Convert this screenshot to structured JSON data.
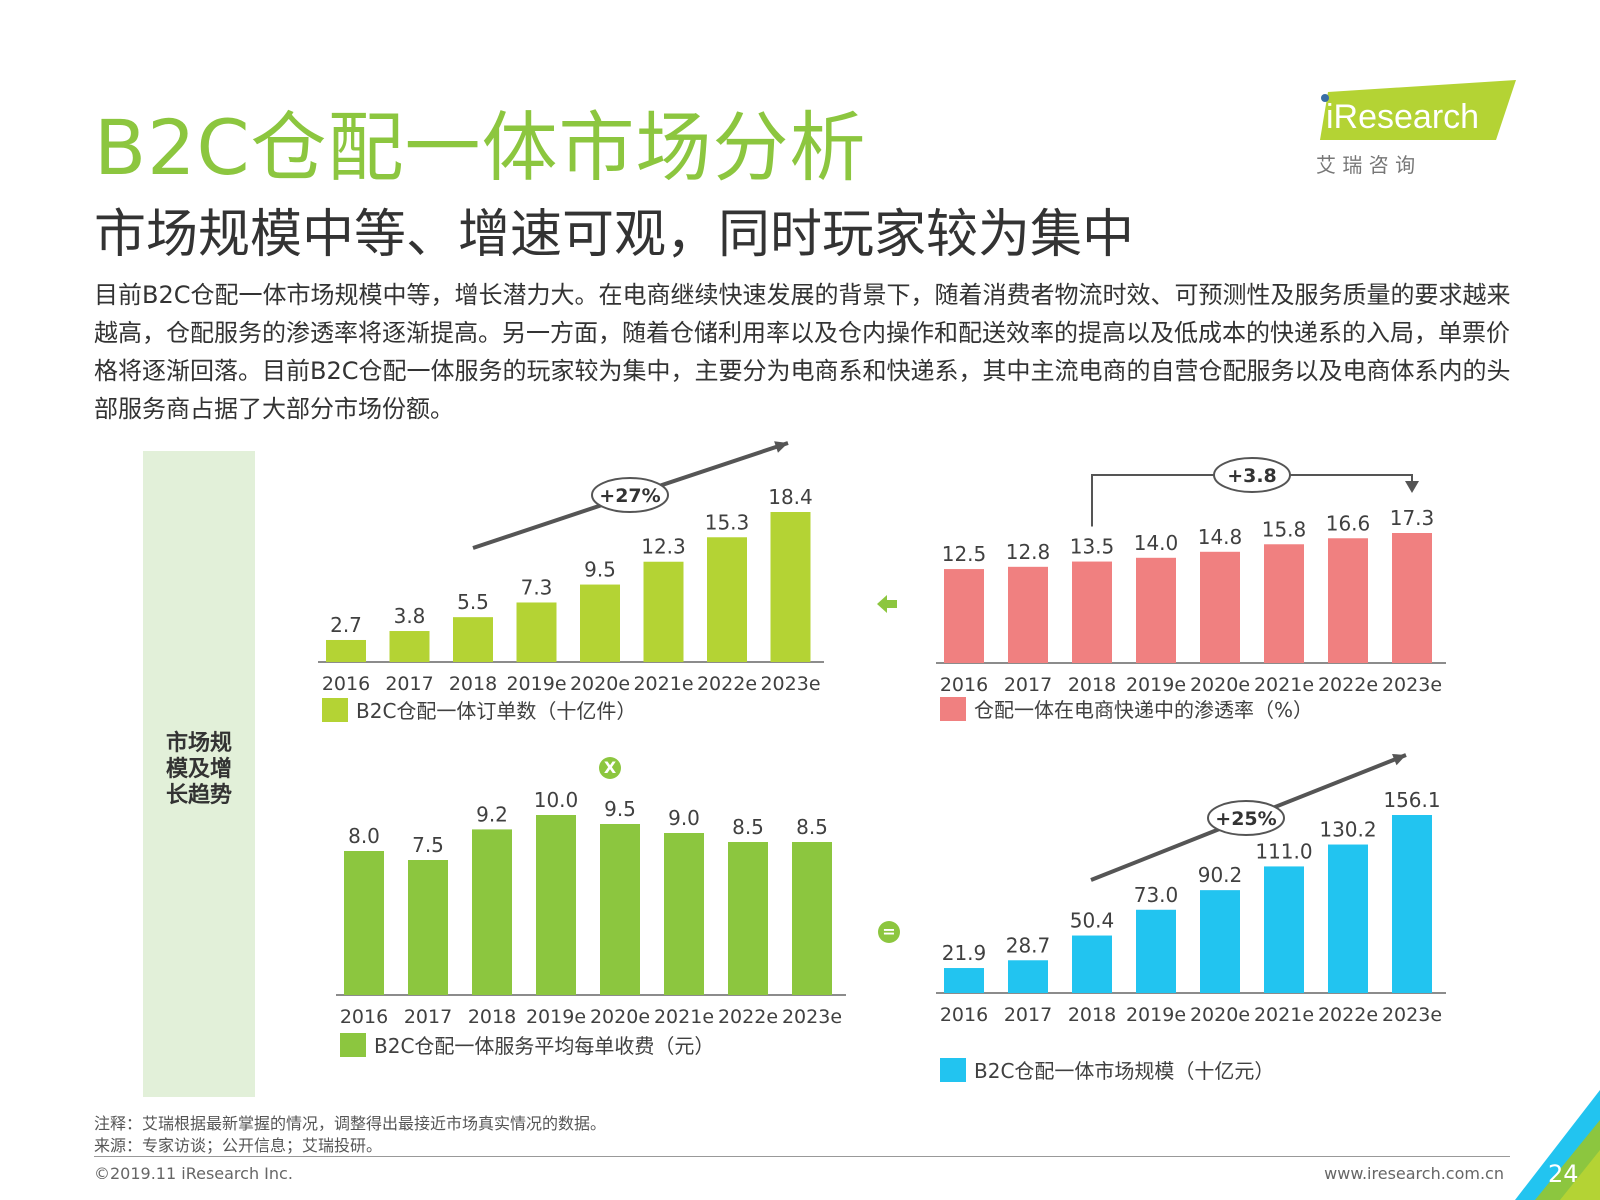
{
  "title": "B2C仓配一体市场分析",
  "subtitle": "市场规模中等、增速可观，同时玩家较为集中",
  "body_text": "目前B2C仓配一体市场规模中等，增长潜力大。在电商继续快速发展的背景下，随着消费者物流时效、可预测性及服务质量的要求越来越高，仓配服务的渗透率将逐渐提高。另一方面，随着仓储利用率以及仓内操作和配送效率的提高以及低成本的快递系的入局，单票价格将逐渐回落。目前B2C仓配一体服务的玩家较为集中，主要分为电商系和快递系，其中主流电商的自营仓配服务以及电商体系内的头部服务商占据了大部分市场份额。",
  "logo": {
    "brand": "iResearch",
    "chinese": "艾 瑞 咨 询"
  },
  "side_label": "市场规模及增长趋势",
  "operators": {
    "multiply": "X",
    "equals": "="
  },
  "notes": {
    "note": "注释：艾瑞根据最新掌握的情况，调整得出最接近市场真实情况的数据。",
    "source": "来源：专家访谈；公开信息；艾瑞投研。"
  },
  "footer": {
    "copyright": "©2019.11 iResearch Inc.",
    "website": "www.iresearch.com.cn",
    "page": "24"
  },
  "colors": {
    "brand_green": "#8cc63f",
    "light_green": "#b4d334",
    "pink": "#f08080",
    "bar_green": "#8cc63f",
    "blue": "#22c4f0",
    "panel": "#e2f0d9"
  },
  "chart_data": [
    {
      "type": "bar",
      "categories": [
        "2016",
        "2017",
        "2018",
        "2019e",
        "2020e",
        "2021e",
        "2022e",
        "2023e"
      ],
      "values": [
        2.7,
        3.8,
        5.5,
        7.3,
        9.5,
        12.3,
        15.3,
        18.4
      ],
      "series_name": "B2C仓配一体订单数（十亿件）",
      "annotation": "+27%",
      "color": "#b4d334",
      "ylim": [
        0,
        18.4
      ]
    },
    {
      "type": "bar",
      "categories": [
        "2016",
        "2017",
        "2018",
        "2019e",
        "2020e",
        "2021e",
        "2022e",
        "2023e"
      ],
      "values": [
        12.5,
        12.8,
        13.5,
        14.0,
        14.8,
        15.8,
        16.6,
        17.3
      ],
      "series_name": "仓配一体在电商快递中的渗透率（%）",
      "annotation": "+3.8",
      "color": "#f08080",
      "ylim": [
        0,
        17.3
      ]
    },
    {
      "type": "bar",
      "categories": [
        "2016",
        "2017",
        "2018",
        "2019e",
        "2020e",
        "2021e",
        "2022e",
        "2023e"
      ],
      "values": [
        8.0,
        7.5,
        9.2,
        10.0,
        9.5,
        9.0,
        8.5,
        8.5
      ],
      "series_name": "B2C仓配一体服务平均每单收费（元）",
      "color": "#8cc63f",
      "ylim": [
        0,
        10.0
      ]
    },
    {
      "type": "bar",
      "categories": [
        "2016",
        "2017",
        "2018",
        "2019e",
        "2020e",
        "2021e",
        "2022e",
        "2023e"
      ],
      "values": [
        21.9,
        28.7,
        50.4,
        73.0,
        90.2,
        111.0,
        130.2,
        156.1
      ],
      "series_name": "B2C仓配一体市场规模（十亿元）",
      "annotation": "+25%",
      "color": "#22c4f0",
      "ylim": [
        0,
        156.1
      ]
    }
  ]
}
